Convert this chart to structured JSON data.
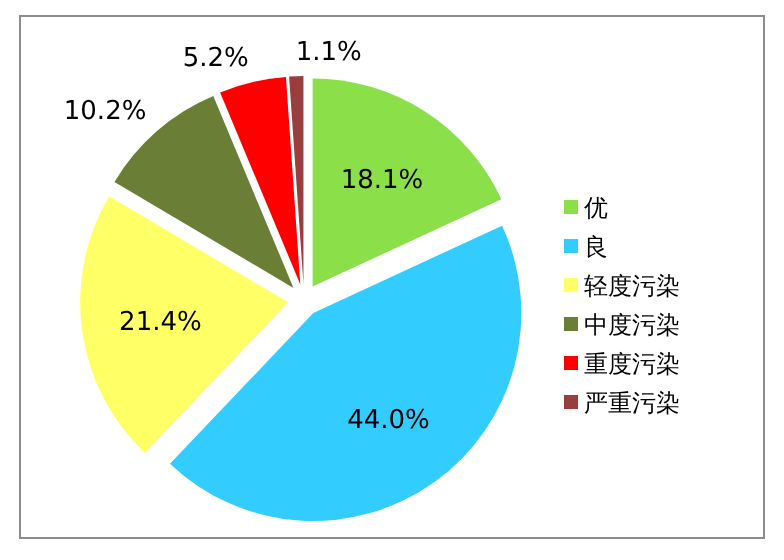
{
  "chart_data": {
    "type": "pie",
    "categories": [
      "优",
      "良",
      "轻度污染",
      "中度污染",
      "重度污染",
      "严重污染"
    ],
    "values": [
      18.1,
      44.0,
      21.4,
      10.2,
      5.2,
      1.1
    ],
    "colors": [
      "#8be04a",
      "#33ccff",
      "#ffff66",
      "#6a7f35",
      "#ff0000",
      "#993d3d"
    ],
    "value_labels": [
      "18.1%",
      "44.0%",
      "21.4%",
      "10.2%",
      "5.2%",
      "1.1%"
    ],
    "legend": "right"
  }
}
